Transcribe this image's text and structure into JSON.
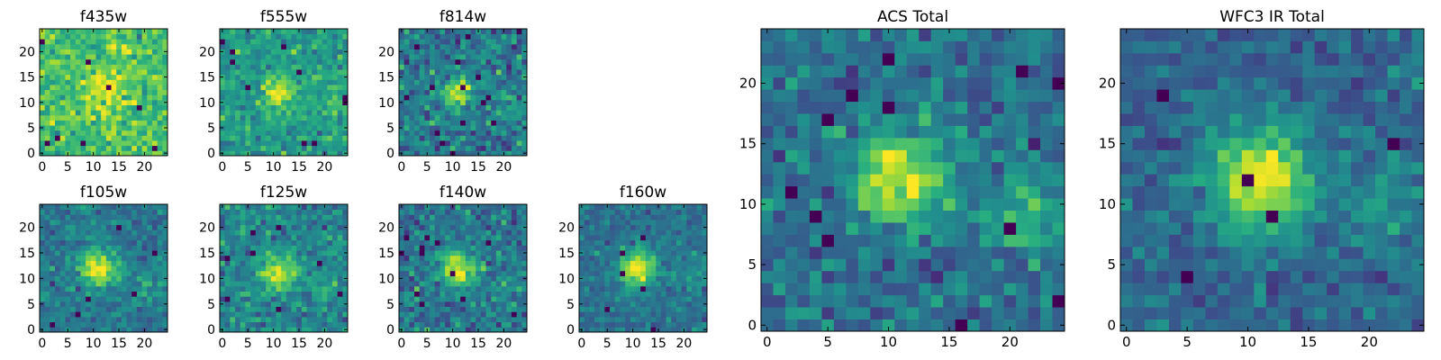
{
  "chart_data": [
    {
      "type": "heatmap",
      "title": "f435w",
      "xlim": [
        -0.5,
        24.5
      ],
      "ylim": [
        -0.5,
        24.5
      ],
      "xticks": [
        0,
        5,
        10,
        15,
        20
      ],
      "yticks": [
        0,
        5,
        10,
        15,
        20
      ],
      "colormap": "viridis",
      "grid_size": 25,
      "model": {
        "background": 0.7,
        "noise": 0.1,
        "peak": 0.25,
        "sigma": 3.0,
        "center": [
          12,
          13
        ],
        "dead_pixels": 8,
        "seed": 11,
        "secondary": null
      }
    },
    {
      "type": "heatmap",
      "title": "f555w",
      "xlim": [
        -0.5,
        24.5
      ],
      "ylim": [
        -0.5,
        24.5
      ],
      "xticks": [
        0,
        5,
        10,
        15,
        20
      ],
      "yticks": [
        0,
        5,
        10,
        15,
        20
      ],
      "colormap": "viridis",
      "grid_size": 25,
      "model": {
        "background": 0.55,
        "noise": 0.09,
        "peak": 0.45,
        "sigma": 2.0,
        "center": [
          11,
          12
        ],
        "dead_pixels": 10,
        "seed": 22,
        "secondary": {
          "center": [
            21,
            10
          ],
          "peak": 0.12,
          "sigma": 2.5
        }
      }
    },
    {
      "type": "heatmap",
      "title": "f814w",
      "xlim": [
        -0.5,
        24.5
      ],
      "ylim": [
        -0.5,
        24.5
      ],
      "xticks": [
        0,
        5,
        10,
        15,
        20
      ],
      "yticks": [
        0,
        5,
        10,
        15,
        20
      ],
      "colormap": "viridis",
      "grid_size": 25,
      "model": {
        "background": 0.4,
        "noise": 0.12,
        "peak": 0.6,
        "sigma": 2.0,
        "center": [
          11,
          12
        ],
        "dead_pixels": 15,
        "seed": 33,
        "secondary": {
          "center": [
            21,
            8
          ],
          "peak": 0.2,
          "sigma": 2.5
        }
      }
    },
    {
      "type": "heatmap",
      "title": "f105w",
      "xlim": [
        -0.5,
        24.5
      ],
      "ylim": [
        -0.5,
        24.5
      ],
      "xticks": [
        0,
        5,
        10,
        15,
        20
      ],
      "yticks": [
        0,
        5,
        10,
        15,
        20
      ],
      "colormap": "viridis",
      "grid_size": 25,
      "model": {
        "background": 0.4,
        "noise": 0.08,
        "peak": 0.6,
        "sigma": 2.5,
        "center": [
          11,
          12
        ],
        "dead_pixels": 6,
        "seed": 44,
        "secondary": {
          "center": [
            21,
            9
          ],
          "peak": 0.12,
          "sigma": 2.5
        }
      }
    },
    {
      "type": "heatmap",
      "title": "f125w",
      "xlim": [
        -0.5,
        24.5
      ],
      "ylim": [
        -0.5,
        24.5
      ],
      "xticks": [
        0,
        5,
        10,
        15,
        20
      ],
      "yticks": [
        0,
        5,
        10,
        15,
        20
      ],
      "colormap": "viridis",
      "grid_size": 25,
      "model": {
        "background": 0.45,
        "noise": 0.1,
        "peak": 0.5,
        "sigma": 2.5,
        "center": [
          11,
          11
        ],
        "dead_pixels": 8,
        "seed": 55,
        "secondary": {
          "center": [
            21,
            9
          ],
          "peak": 0.12,
          "sigma": 2.5
        }
      }
    },
    {
      "type": "heatmap",
      "title": "f140w",
      "xlim": [
        -0.5,
        24.5
      ],
      "ylim": [
        -0.5,
        24.5
      ],
      "xticks": [
        0,
        5,
        10,
        15,
        20
      ],
      "yticks": [
        0,
        5,
        10,
        15,
        20
      ],
      "colormap": "viridis",
      "grid_size": 25,
      "model": {
        "background": 0.4,
        "noise": 0.1,
        "peak": 0.6,
        "sigma": 2.5,
        "center": [
          11,
          12
        ],
        "dead_pixels": 12,
        "seed": 66,
        "secondary": {
          "center": [
            21,
            6
          ],
          "peak": 0.15,
          "sigma": 2.0
        }
      }
    },
    {
      "type": "heatmap",
      "title": "f160w",
      "xlim": [
        -0.5,
        24.5
      ],
      "ylim": [
        -0.5,
        24.5
      ],
      "xticks": [
        0,
        5,
        10,
        15,
        20
      ],
      "yticks": [
        0,
        5,
        10,
        15,
        20
      ],
      "colormap": "viridis",
      "grid_size": 25,
      "model": {
        "background": 0.38,
        "noise": 0.07,
        "peak": 0.6,
        "sigma": 2.5,
        "center": [
          11,
          12
        ],
        "dead_pixels": 6,
        "seed": 77,
        "secondary": {
          "center": [
            21,
            11
          ],
          "peak": 0.12,
          "sigma": 2.5
        }
      }
    },
    {
      "type": "heatmap",
      "title": "ACS Total",
      "xlim": [
        -0.5,
        24.5
      ],
      "ylim": [
        -0.5,
        24.5
      ],
      "xticks": [
        0,
        5,
        10,
        15,
        20
      ],
      "yticks": [
        0,
        5,
        10,
        15,
        20
      ],
      "colormap": "viridis",
      "grid_size": 25,
      "model": {
        "background": 0.38,
        "noise": 0.1,
        "peak": 0.6,
        "sigma": 2.5,
        "center": [
          11,
          12
        ],
        "dead_pixels": 12,
        "seed": 88,
        "secondary": {
          "center": [
            21,
            9
          ],
          "peak": 0.25,
          "sigma": 2.5
        }
      }
    },
    {
      "type": "heatmap",
      "title": "WFC3 IR Total",
      "xlim": [
        -0.5,
        24.5
      ],
      "ylim": [
        -0.5,
        24.5
      ],
      "xticks": [
        0,
        5,
        10,
        15,
        20
      ],
      "yticks": [
        0,
        5,
        10,
        15,
        20
      ],
      "colormap": "viridis",
      "grid_size": 25,
      "model": {
        "background": 0.33,
        "noise": 0.08,
        "peak": 0.65,
        "sigma": 3.0,
        "center": [
          11,
          12
        ],
        "dead_pixels": 5,
        "seed": 99,
        "secondary": {
          "center": [
            21,
            10
          ],
          "peak": 0.15,
          "sigma": 2.5
        }
      }
    }
  ],
  "colormap_stops": [
    "#440154",
    "#472c7a",
    "#3b518b",
    "#2c718e",
    "#21908d",
    "#27ad81",
    "#5cc863",
    "#aadc32",
    "#fde725"
  ]
}
